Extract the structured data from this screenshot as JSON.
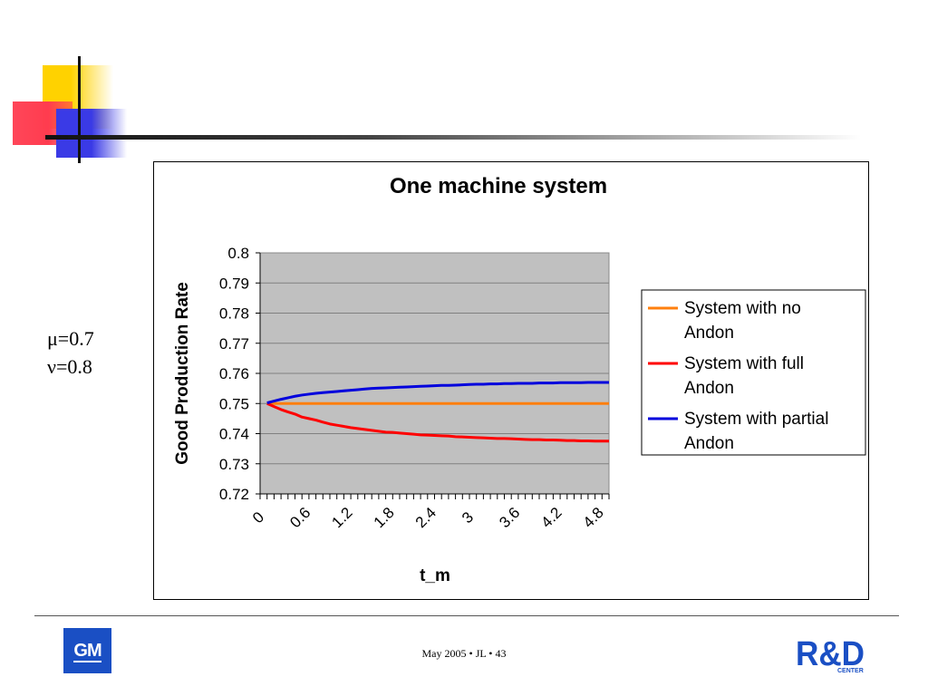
{
  "params": {
    "mu": "μ=0.7",
    "nu": "ν=0.8"
  },
  "footer": {
    "text": "May 2005 • JL • 43"
  },
  "logos": {
    "gm_text": "GM",
    "rd_text": "R&D",
    "rd_sub": "CENTER"
  },
  "colors": {
    "plot_bg": "#c0c0c0",
    "no_andon": "#ff7f0e",
    "full_andon": "#ff0000",
    "partial_andon": "#0000dd"
  },
  "chart_data": {
    "type": "line",
    "title": "One machine system",
    "xlabel": "t_m",
    "ylabel": "Good Production Rate",
    "ylim": [
      0.72,
      0.8
    ],
    "xlim": [
      0,
      5
    ],
    "yticks": [
      "0.8",
      "0.79",
      "0.78",
      "0.77",
      "0.76",
      "0.75",
      "0.74",
      "0.73",
      "0.72"
    ],
    "xticks": [
      "0",
      "0.6",
      "1.2",
      "1.8",
      "2.4",
      "3",
      "3.6",
      "4.2",
      "4.8"
    ],
    "grid": true,
    "legend": "right",
    "x": [
      0.1,
      0.2,
      0.3,
      0.4,
      0.5,
      0.6,
      0.7,
      0.8,
      0.9,
      1.0,
      1.1,
      1.2,
      1.3,
      1.4,
      1.5,
      1.6,
      1.7,
      1.8,
      1.9,
      2.0,
      2.1,
      2.2,
      2.3,
      2.4,
      2.5,
      2.6,
      2.7,
      2.8,
      2.9,
      3.0,
      3.1,
      3.2,
      3.3,
      3.4,
      3.5,
      3.6,
      3.7,
      3.8,
      3.9,
      4.0,
      4.1,
      4.2,
      4.3,
      4.4,
      4.5,
      4.6,
      4.7,
      4.8,
      4.9,
      5.0
    ],
    "series": [
      {
        "name": "System with no Andon",
        "color": "#ff7f0e",
        "values": [
          0.75,
          0.75,
          0.75,
          0.75,
          0.75,
          0.75,
          0.75,
          0.75,
          0.75,
          0.75,
          0.75,
          0.75,
          0.75,
          0.75,
          0.75,
          0.75,
          0.75,
          0.75,
          0.75,
          0.75,
          0.75,
          0.75,
          0.75,
          0.75,
          0.75,
          0.75,
          0.75,
          0.75,
          0.75,
          0.75,
          0.75,
          0.75,
          0.75,
          0.75,
          0.75,
          0.75,
          0.75,
          0.75,
          0.75,
          0.75,
          0.75,
          0.75,
          0.75,
          0.75,
          0.75,
          0.75,
          0.75,
          0.75,
          0.75,
          0.75
        ]
      },
      {
        "name": "System with full Andon",
        "color": "#ff0000",
        "values": [
          0.75,
          0.749,
          0.748,
          0.7472,
          0.7465,
          0.7455,
          0.745,
          0.7445,
          0.7438,
          0.7432,
          0.7428,
          0.7424,
          0.742,
          0.7417,
          0.7414,
          0.7411,
          0.7408,
          0.7405,
          0.7404,
          0.7402,
          0.74,
          0.7398,
          0.7396,
          0.7395,
          0.7394,
          0.7393,
          0.7392,
          0.739,
          0.7389,
          0.7388,
          0.7387,
          0.7386,
          0.7385,
          0.7384,
          0.7384,
          0.7383,
          0.7382,
          0.7381,
          0.738,
          0.738,
          0.7379,
          0.7379,
          0.7378,
          0.7377,
          0.7377,
          0.7376,
          0.7376,
          0.7375,
          0.7375,
          0.7375
        ]
      },
      {
        "name": "System with partial Andon",
        "color": "#0000dd",
        "values": [
          0.7502,
          0.7508,
          0.7514,
          0.7519,
          0.7524,
          0.7528,
          0.7531,
          0.7534,
          0.7536,
          0.7538,
          0.754,
          0.7542,
          0.7544,
          0.7546,
          0.7548,
          0.755,
          0.7551,
          0.7552,
          0.7553,
          0.7554,
          0.7555,
          0.7556,
          0.7557,
          0.7558,
          0.7559,
          0.756,
          0.756,
          0.7561,
          0.7562,
          0.7563,
          0.7564,
          0.7564,
          0.7565,
          0.7565,
          0.7566,
          0.7566,
          0.7567,
          0.7567,
          0.7567,
          0.7568,
          0.7568,
          0.7568,
          0.7569,
          0.7569,
          0.7569,
          0.7569,
          0.757,
          0.757,
          0.757,
          0.757
        ]
      }
    ]
  }
}
